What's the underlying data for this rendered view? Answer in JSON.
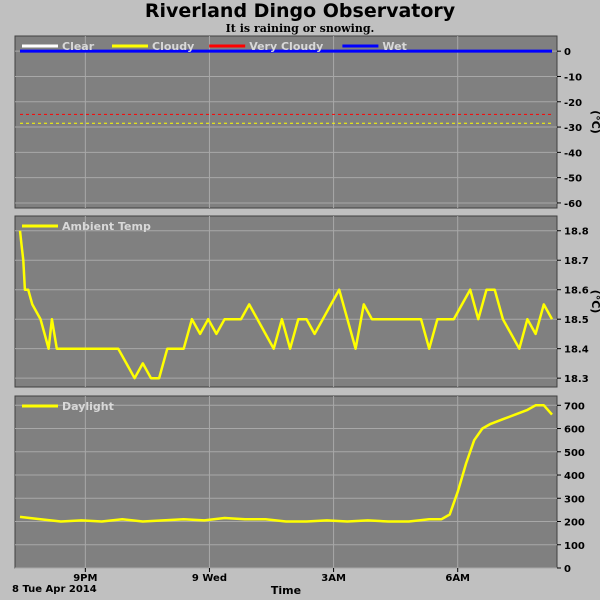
{
  "title": "Riverland Dingo Observatory",
  "subtitle": "It is raining or snowing.",
  "date_label": "8 Tue Apr 2014",
  "time_label": "Time",
  "colors": {
    "background": "#c0c0c0",
    "plot_bg": "#808080",
    "grid": "#a8a8a8",
    "data_line": "#ffff00"
  },
  "chart_data": [
    {
      "type": "line",
      "title": "",
      "legend_placement": "top-left",
      "ylabel": "(°C)",
      "yticks": [
        0,
        -10,
        -20,
        -30,
        -40,
        -50,
        -60
      ],
      "ylim": [
        -62,
        6
      ],
      "grid": true,
      "series": [
        {
          "name": "Clear",
          "color": "#ffffff",
          "style": "legend-only",
          "values": []
        },
        {
          "name": "Cloudy",
          "color": "#ffff00",
          "style": "dashed",
          "values": [
            -28.5
          ]
        },
        {
          "name": "Very Cloudy",
          "color": "#ff0000",
          "style": "dashed",
          "values": [
            -25
          ]
        },
        {
          "name": "Wet",
          "color": "#0000ff",
          "style": "solid",
          "values": [
            0
          ]
        }
      ]
    },
    {
      "type": "line",
      "title": "",
      "legend_placement": "top-left",
      "ylabel": "(°C)",
      "yticks": [
        18.3,
        18.4,
        18.5,
        18.6,
        18.7,
        18.8
      ],
      "ylim": [
        18.27,
        18.85
      ],
      "grid": true,
      "series": [
        {
          "name": "Ambient Temp",
          "color": "#ffff00",
          "x_hours": [
            0,
            0.04,
            0.08,
            0.12,
            0.2,
            0.3,
            0.5,
            0.6,
            0.7,
            0.78,
            0.9,
            1.1,
            1.5,
            2,
            2.4,
            2.6,
            2.8,
            3,
            3.2,
            3.4,
            3.6,
            3.8,
            4,
            4.2,
            4.4,
            4.6,
            4.8,
            5,
            5.2,
            5.4,
            5.6,
            5.8,
            6,
            6.2,
            6.4,
            6.6,
            6.8,
            7,
            7.2,
            7.4,
            7.6,
            7.8,
            8,
            8.2,
            8.4,
            8.6,
            8.8,
            9,
            9.2,
            9.4,
            9.6,
            9.8,
            10,
            10.2,
            10.4,
            10.6,
            10.8,
            11,
            11.2,
            11.4,
            11.6,
            11.8,
            12,
            12.2,
            12.4,
            12.6,
            12.8,
            13
          ],
          "values": [
            18.8,
            18.75,
            18.7,
            18.6,
            18.6,
            18.55,
            18.5,
            18.45,
            18.4,
            18.5,
            18.4,
            18.4,
            18.4,
            18.4,
            18.4,
            18.35,
            18.3,
            18.35,
            18.3,
            18.3,
            18.4,
            18.4,
            18.4,
            18.5,
            18.45,
            18.5,
            18.45,
            18.5,
            18.5,
            18.5,
            18.55,
            18.5,
            18.45,
            18.4,
            18.5,
            18.4,
            18.5,
            18.5,
            18.45,
            18.5,
            18.55,
            18.6,
            18.5,
            18.4,
            18.55,
            18.5,
            18.5,
            18.5,
            18.5,
            18.5,
            18.5,
            18.5,
            18.4,
            18.5,
            18.5,
            18.5,
            18.55,
            18.6,
            18.5,
            18.6,
            18.6,
            18.5,
            18.45,
            18.4,
            18.5,
            18.45,
            18.55,
            18.5
          ]
        }
      ]
    },
    {
      "type": "line",
      "title": "",
      "legend_placement": "top-left",
      "ylabel": "",
      "yticks": [
        0,
        100,
        200,
        300,
        400,
        500,
        600,
        700
      ],
      "ylim": [
        0,
        740
      ],
      "grid": true,
      "series": [
        {
          "name": "Daylight",
          "color": "#ffff00",
          "x_hours": [
            0,
            0.5,
            1,
            1.5,
            2,
            2.5,
            3,
            3.5,
            4,
            4.5,
            5,
            5.5,
            6,
            6.5,
            7,
            7.5,
            8,
            8.5,
            9,
            9.5,
            10,
            10.3,
            10.5,
            10.7,
            10.9,
            11.1,
            11.3,
            11.5,
            11.8,
            12.1,
            12.4,
            12.6,
            12.8,
            12.95,
            13
          ],
          "values": [
            220,
            210,
            200,
            205,
            200,
            210,
            200,
            205,
            210,
            205,
            215,
            210,
            210,
            200,
            200,
            205,
            200,
            205,
            200,
            200,
            210,
            210,
            230,
            330,
            450,
            550,
            600,
            620,
            640,
            660,
            680,
            700,
            700,
            670,
            660
          ]
        }
      ]
    }
  ],
  "x_axis": {
    "start_hour": 19.3,
    "end_hour": 32.4,
    "ticks": [
      {
        "hour": 21,
        "label": "9PM"
      },
      {
        "hour": 24,
        "label": "9 Wed"
      },
      {
        "hour": 27,
        "label": "3AM"
      },
      {
        "hour": 30,
        "label": "6AM"
      }
    ]
  }
}
